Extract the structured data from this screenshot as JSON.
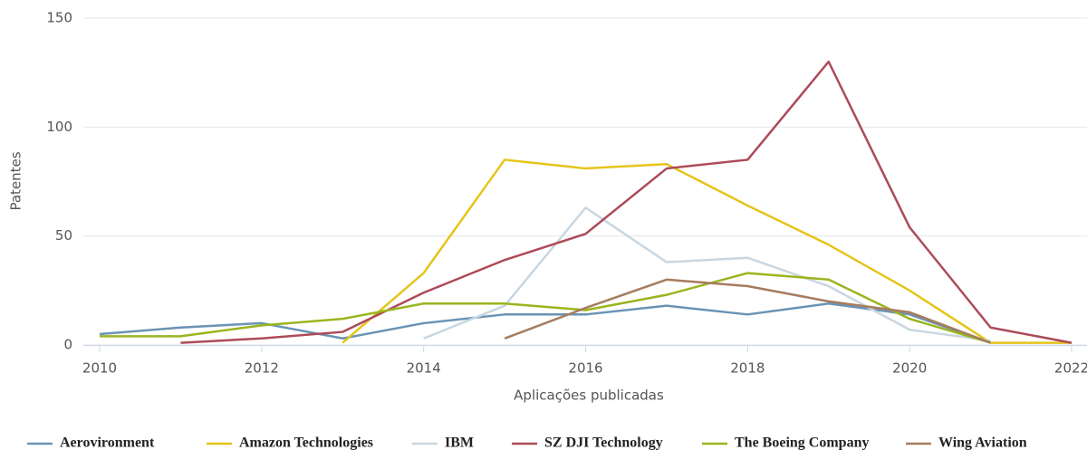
{
  "chart_data": {
    "type": "line",
    "x_label": "Aplicações publicadas",
    "y_label": "Patentes",
    "x": [
      2010,
      2011,
      2012,
      2013,
      2014,
      2015,
      2016,
      2017,
      2018,
      2019,
      2020,
      2021,
      2022
    ],
    "xlim": [
      2010,
      2022
    ],
    "xticks": [
      2010,
      2012,
      2014,
      2016,
      2018,
      2020,
      2022
    ],
    "ylim": [
      0,
      150
    ],
    "yticks": [
      0,
      50,
      100,
      150
    ],
    "grid": true,
    "legend": "bottom",
    "series": [
      {
        "name": "Aerovironment",
        "color": "#6a93b4",
        "values": [
          5,
          8,
          10,
          3,
          10,
          14,
          14,
          18,
          14,
          19,
          14,
          1,
          null
        ]
      },
      {
        "name": "Amazon Technologies",
        "color": "#e6c41a",
        "values": [
          null,
          null,
          null,
          1,
          33,
          85,
          81,
          83,
          64,
          46,
          25,
          1,
          1
        ]
      },
      {
        "name": "IBM",
        "color": "#c8d7e1",
        "values": [
          null,
          null,
          null,
          null,
          3,
          18,
          63,
          38,
          40,
          27,
          7,
          2,
          null
        ]
      },
      {
        "name": "SZ DJI Technology",
        "color": "#ad4a58",
        "values": [
          null,
          1,
          3,
          6,
          24,
          39,
          51,
          81,
          85,
          130,
          54,
          8,
          1
        ]
      },
      {
        "name": "The Boeing Company",
        "color": "#9ab51e",
        "values": [
          4,
          4,
          9,
          12,
          19,
          19,
          16,
          23,
          33,
          30,
          12,
          1,
          null
        ]
      },
      {
        "name": "Wing Aviation",
        "color": "#a67c5e",
        "values": [
          null,
          null,
          null,
          null,
          null,
          3,
          17,
          30,
          27,
          20,
          15,
          1,
          null
        ]
      }
    ]
  }
}
